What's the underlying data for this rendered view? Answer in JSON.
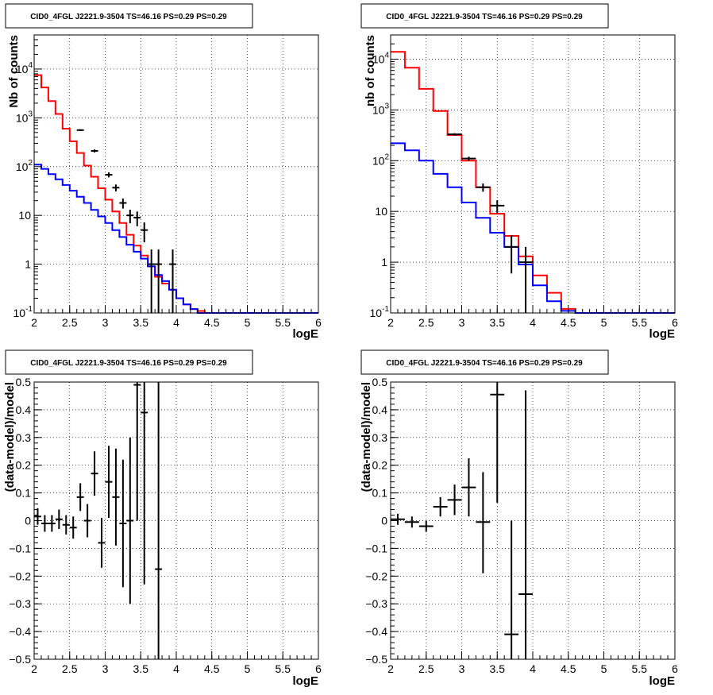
{
  "chart_data": [
    {
      "type": "line",
      "title": "CID0_4FGL J2221.9-3504 TS=46.16 PS=0.29 PS=0.29",
      "xlabel": "logE",
      "ylabel": "Nb of counts",
      "ylog": true,
      "xlim": [
        2,
        6
      ],
      "ylim": [
        0.1,
        50000
      ],
      "xticks": [
        "2",
        "2.5",
        "3",
        "3.5",
        "4",
        "4.5",
        "5",
        "5.5",
        "6"
      ],
      "yticks": [
        "10^-1",
        "1",
        "10",
        "10^2",
        "10^3",
        "10^4"
      ],
      "grid": true,
      "series": [
        {
          "color": "#ff0000",
          "edges": [
            2.0,
            2.1,
            2.2,
            2.3,
            2.4,
            2.5,
            2.6,
            2.7,
            2.8,
            2.9,
            3.0,
            3.1,
            3.2,
            3.3,
            3.4,
            3.5,
            3.6,
            3.7,
            3.8,
            3.9,
            4.0,
            4.1,
            4.2,
            4.3,
            4.4,
            6.0
          ],
          "values": [
            7500,
            4200,
            2200,
            1200,
            600,
            330,
            190,
            105,
            62,
            36,
            21,
            12,
            7,
            4,
            2.4,
            1.5,
            0.9,
            0.55,
            0.4,
            0.3,
            0.2,
            0.15,
            0.12,
            0.11,
            0.1
          ]
        },
        {
          "color": "#0000ff",
          "edges": [
            2.0,
            2.1,
            2.2,
            2.3,
            2.4,
            2.5,
            2.6,
            2.7,
            2.8,
            2.9,
            3.0,
            3.1,
            3.2,
            3.3,
            3.4,
            3.5,
            3.6,
            3.7,
            3.8,
            3.9,
            4.0,
            4.1,
            4.2,
            4.3,
            4.4,
            6.0
          ],
          "values": [
            110,
            90,
            70,
            55,
            42,
            32,
            24,
            18,
            13,
            9.5,
            7,
            5,
            3.6,
            2.5,
            1.8,
            1.3,
            0.9,
            0.6,
            0.45,
            0.3,
            0.2,
            0.15,
            0.12,
            0.1,
            0.1
          ]
        }
      ],
      "points": [
        {
          "x": 2.65,
          "y": 560,
          "xerr": 0.05,
          "yerr": [
            24,
            24
          ]
        },
        {
          "x": 2.85,
          "y": 210,
          "xerr": 0.05,
          "yerr": [
            15,
            15
          ]
        },
        {
          "x": 3.05,
          "y": 68,
          "xerr": 0.05,
          "yerr": [
            8,
            8
          ]
        },
        {
          "x": 3.15,
          "y": 37,
          "xerr": 0.05,
          "yerr": [
            6,
            6
          ]
        },
        {
          "x": 3.25,
          "y": 18,
          "xerr": 0.05,
          "yerr": [
            4.2,
            4.2
          ]
        },
        {
          "x": 3.35,
          "y": 10,
          "xerr": 0.05,
          "yerr": [
            3.1,
            3.1
          ]
        },
        {
          "x": 3.45,
          "y": 9,
          "xerr": 0.05,
          "yerr": [
            3,
            3
          ]
        },
        {
          "x": 3.55,
          "y": 5,
          "xerr": 0.05,
          "yerr": [
            2.2,
            2.2
          ]
        },
        {
          "x": 3.65,
          "y": 1,
          "xerr": 0.05,
          "yerr": [
            0.999,
            1
          ]
        },
        {
          "x": 3.75,
          "y": 1,
          "xerr": 0.05,
          "yerr": [
            0.999,
            1
          ]
        },
        {
          "x": 3.95,
          "y": 1,
          "xerr": 0.05,
          "yerr": [
            0.999,
            1
          ]
        }
      ]
    },
    {
      "type": "line",
      "title": "CID0_4FGL J2221.9-3504 TS=46.16 PS=0.29 PS=0.29",
      "xlabel": "logE",
      "ylabel": "nb of counts",
      "ylog": true,
      "xlim": [
        2,
        6
      ],
      "ylim": [
        0.1,
        30000
      ],
      "xticks": [
        "2",
        "2.5",
        "3",
        "3.5",
        "4",
        "4.5",
        "5",
        "5.5",
        "6"
      ],
      "yticks": [
        "10^-1",
        "1",
        "10",
        "10^2",
        "10^3",
        "10^4"
      ],
      "grid": true,
      "series": [
        {
          "color": "#ff0000",
          "edges": [
            2.0,
            2.2,
            2.4,
            2.6,
            2.8,
            3.0,
            3.2,
            3.4,
            3.6,
            3.8,
            4.0,
            4.2,
            4.4,
            4.6,
            6.0
          ],
          "values": [
            14000,
            6800,
            2600,
            950,
            320,
            100,
            30,
            9,
            3.3,
            1.3,
            0.55,
            0.25,
            0.12,
            0.1
          ]
        },
        {
          "color": "#0000ff",
          "edges": [
            2.0,
            2.2,
            2.4,
            2.6,
            2.8,
            3.0,
            3.2,
            3.4,
            3.6,
            3.8,
            4.0,
            4.2,
            4.4,
            4.6,
            6.0
          ],
          "values": [
            220,
            160,
            100,
            55,
            30,
            15,
            7.5,
            3.8,
            2,
            0.9,
            0.35,
            0.17,
            0.11,
            0.1
          ]
        }
      ],
      "points": [
        {
          "x": 2.9,
          "y": 330,
          "xerr": 0.1,
          "yerr": [
            18,
            18
          ]
        },
        {
          "x": 3.1,
          "y": 110,
          "xerr": 0.1,
          "yerr": [
            10,
            10
          ]
        },
        {
          "x": 3.3,
          "y": 30,
          "xerr": 0.1,
          "yerr": [
            5.5,
            5.5
          ]
        },
        {
          "x": 3.5,
          "y": 13,
          "xerr": 0.1,
          "yerr": [
            3.6,
            3.6
          ]
        },
        {
          "x": 3.7,
          "y": 2,
          "xerr": 0.1,
          "yerr": [
            1.4,
            1.4
          ]
        },
        {
          "x": 3.9,
          "y": 1,
          "xerr": 0.1,
          "yerr": [
            0.999,
            1
          ]
        }
      ]
    },
    {
      "type": "scatter",
      "title": "CID0_4FGL J2221.9-3504 TS=46.16 PS=0.29 PS=0.29",
      "xlabel": "logE",
      "ylabel": "(data-model)/model",
      "xlim": [
        2,
        6
      ],
      "ylim": [
        -0.5,
        0.5
      ],
      "xticks": [
        "2",
        "2.5",
        "3",
        "3.5",
        "4",
        "4.5",
        "5",
        "5.5",
        "6"
      ],
      "yticks": [
        "-0.5",
        "-0.4",
        "-0.3",
        "-0.2",
        "-0.1",
        "0",
        "0.1",
        "0.2",
        "0.3",
        "0.4",
        "0.5"
      ],
      "grid": true,
      "points": [
        {
          "x": 2.05,
          "y": 0.015,
          "xerr": 0.05,
          "yerr": [
            0.03,
            0.03
          ]
        },
        {
          "x": 2.15,
          "y": -0.01,
          "xerr": 0.05,
          "yerr": [
            0.03,
            0.03
          ]
        },
        {
          "x": 2.25,
          "y": -0.01,
          "xerr": 0.05,
          "yerr": [
            0.03,
            0.03
          ]
        },
        {
          "x": 2.35,
          "y": 0.005,
          "xerr": 0.05,
          "yerr": [
            0.035,
            0.035
          ]
        },
        {
          "x": 2.45,
          "y": -0.015,
          "xerr": 0.05,
          "yerr": [
            0.035,
            0.035
          ]
        },
        {
          "x": 2.55,
          "y": -0.025,
          "xerr": 0.05,
          "yerr": [
            0.04,
            0.04
          ]
        },
        {
          "x": 2.65,
          "y": 0.085,
          "xerr": 0.05,
          "yerr": [
            0.05,
            0.05
          ]
        },
        {
          "x": 2.75,
          "y": 0.0,
          "xerr": 0.05,
          "yerr": [
            0.06,
            0.06
          ]
        },
        {
          "x": 2.85,
          "y": 0.17,
          "xerr": 0.05,
          "yerr": [
            0.08,
            0.08
          ]
        },
        {
          "x": 2.95,
          "y": -0.08,
          "xerr": 0.05,
          "yerr": [
            0.09,
            0.09
          ]
        },
        {
          "x": 3.05,
          "y": 0.14,
          "xerr": 0.05,
          "yerr": [
            0.13,
            0.13
          ]
        },
        {
          "x": 3.15,
          "y": 0.085,
          "xerr": 0.05,
          "yerr": [
            0.175,
            0.175
          ]
        },
        {
          "x": 3.25,
          "y": -0.01,
          "xerr": 0.05,
          "yerr": [
            0.23,
            0.23
          ]
        },
        {
          "x": 3.35,
          "y": 0.0,
          "xerr": 0.05,
          "yerr": [
            0.3,
            0.3
          ]
        },
        {
          "x": 3.45,
          "y": 0.49,
          "xerr": 0.05,
          "yerr": [
            0.49,
            0.35
          ]
        },
        {
          "x": 3.55,
          "y": 0.39,
          "xerr": 0.05,
          "yerr": [
            0.62,
            0.4
          ]
        },
        {
          "x": 3.75,
          "y": -0.175,
          "xerr": 0.05,
          "yerr": [
            0.4,
            0.7
          ]
        }
      ]
    },
    {
      "type": "scatter",
      "title": "CID0_4FGL J2221.9-3504 TS=46.16 PS=0.29 PS=0.29",
      "xlabel": "logE",
      "ylabel": "(data-model)/model",
      "xlim": [
        2,
        6
      ],
      "ylim": [
        -0.5,
        0.5
      ],
      "xticks": [
        "2",
        "2.5",
        "3",
        "3.5",
        "4",
        "4.5",
        "5",
        "5.5",
        "6"
      ],
      "yticks": [
        "-0.5",
        "-0.4",
        "-0.3",
        "-0.2",
        "-0.1",
        "0",
        "0.1",
        "0.2",
        "0.3",
        "0.4",
        "0.5"
      ],
      "grid": true,
      "points": [
        {
          "x": 2.1,
          "y": 0.005,
          "xerr": 0.1,
          "yerr": [
            0.02,
            0.02
          ]
        },
        {
          "x": 2.3,
          "y": -0.005,
          "xerr": 0.1,
          "yerr": [
            0.02,
            0.02
          ]
        },
        {
          "x": 2.5,
          "y": -0.02,
          "xerr": 0.1,
          "yerr": [
            0.02,
            0.02
          ]
        },
        {
          "x": 2.7,
          "y": 0.05,
          "xerr": 0.1,
          "yerr": [
            0.035,
            0.035
          ]
        },
        {
          "x": 2.9,
          "y": 0.075,
          "xerr": 0.1,
          "yerr": [
            0.055,
            0.055
          ]
        },
        {
          "x": 3.1,
          "y": 0.12,
          "xerr": 0.1,
          "yerr": [
            0.105,
            0.105
          ]
        },
        {
          "x": 3.3,
          "y": -0.005,
          "xerr": 0.1,
          "yerr": [
            0.185,
            0.18
          ]
        },
        {
          "x": 3.5,
          "y": 0.455,
          "xerr": 0.1,
          "yerr": [
            0.39,
            0.05
          ]
        },
        {
          "x": 3.7,
          "y": -0.41,
          "xerr": 0.1,
          "yerr": [
            0.1,
            0.41
          ]
        },
        {
          "x": 3.9,
          "y": -0.265,
          "xerr": 0.1,
          "yerr": [
            0.24,
            0.735
          ]
        }
      ]
    }
  ]
}
